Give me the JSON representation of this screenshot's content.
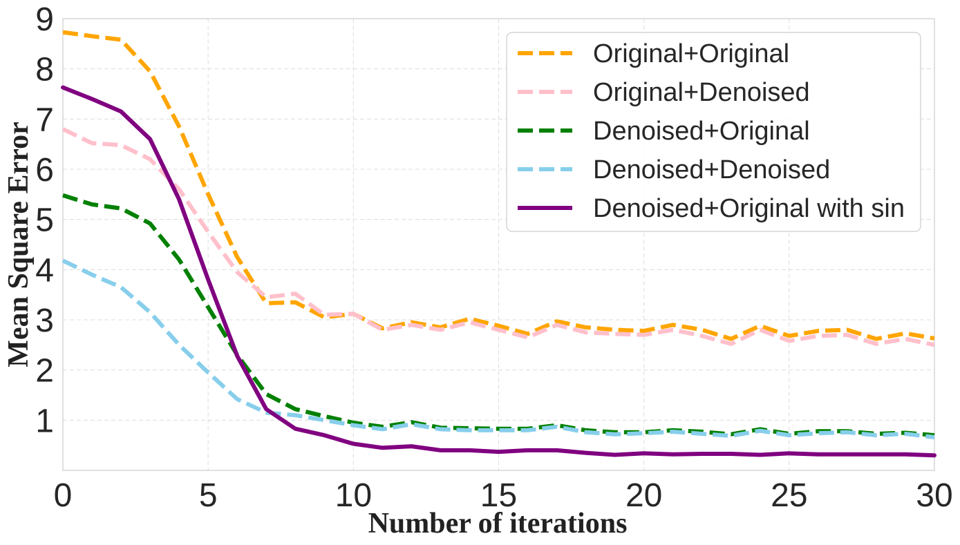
{
  "chart_data": {
    "type": "line",
    "title": "",
    "xlabel": "Number of iterations",
    "ylabel": "Mean Square Error",
    "xlim": [
      0,
      30
    ],
    "ylim": [
      0,
      9
    ],
    "xticks": [
      "0",
      "5",
      "10",
      "15",
      "20",
      "25",
      "30"
    ],
    "yticks": [
      "1",
      "2",
      "3",
      "4",
      "5",
      "6",
      "7",
      "8",
      "9"
    ],
    "grid": true,
    "legend_position": "top-right",
    "x": [
      0,
      1,
      2,
      3,
      4,
      5,
      6,
      7,
      8,
      9,
      10,
      11,
      12,
      13,
      14,
      15,
      16,
      17,
      18,
      19,
      20,
      21,
      22,
      23,
      24,
      25,
      26,
      27,
      28,
      29,
      30
    ],
    "series": [
      {
        "name": "Original+Original",
        "color": "#FFA500",
        "style": "dashed",
        "values": [
          8.73,
          8.65,
          8.58,
          7.95,
          6.85,
          5.5,
          4.25,
          3.33,
          3.35,
          3.05,
          3.12,
          2.83,
          2.95,
          2.85,
          3.02,
          2.88,
          2.72,
          2.97,
          2.85,
          2.8,
          2.78,
          2.9,
          2.8,
          2.62,
          2.88,
          2.68,
          2.78,
          2.8,
          2.62,
          2.73,
          2.63
        ]
      },
      {
        "name": "Original+Denoised",
        "color": "#FFC0CB",
        "style": "dashed",
        "values": [
          6.8,
          6.52,
          6.48,
          6.2,
          5.6,
          4.75,
          3.95,
          3.45,
          3.52,
          3.1,
          3.12,
          2.8,
          2.9,
          2.8,
          2.95,
          2.8,
          2.65,
          2.9,
          2.75,
          2.72,
          2.7,
          2.8,
          2.68,
          2.52,
          2.8,
          2.58,
          2.68,
          2.7,
          2.52,
          2.62,
          2.5
        ]
      },
      {
        "name": "Denoised+Original",
        "color": "#008000",
        "style": "dashed",
        "values": [
          5.48,
          5.3,
          5.22,
          4.92,
          4.2,
          3.25,
          2.3,
          1.52,
          1.22,
          1.08,
          0.95,
          0.87,
          0.96,
          0.85,
          0.84,
          0.83,
          0.83,
          0.9,
          0.8,
          0.76,
          0.76,
          0.8,
          0.77,
          0.72,
          0.82,
          0.73,
          0.78,
          0.78,
          0.73,
          0.75,
          0.7
        ]
      },
      {
        "name": "Denoised+Denoised",
        "color": "#87CEEB",
        "style": "dashed",
        "values": [
          4.18,
          3.9,
          3.65,
          3.15,
          2.5,
          1.95,
          1.42,
          1.15,
          1.1,
          1.0,
          0.9,
          0.82,
          0.92,
          0.82,
          0.8,
          0.8,
          0.8,
          0.87,
          0.76,
          0.72,
          0.74,
          0.77,
          0.73,
          0.69,
          0.79,
          0.7,
          0.74,
          0.76,
          0.7,
          0.73,
          0.66
        ]
      },
      {
        "name": "Denoised+Original with sin",
        "color": "#800080",
        "style": "solid",
        "values": [
          7.63,
          7.4,
          7.15,
          6.6,
          5.4,
          3.8,
          2.28,
          1.22,
          0.83,
          0.7,
          0.53,
          0.45,
          0.48,
          0.4,
          0.4,
          0.37,
          0.4,
          0.4,
          0.35,
          0.31,
          0.34,
          0.32,
          0.33,
          0.33,
          0.31,
          0.34,
          0.32,
          0.32,
          0.32,
          0.32,
          0.3
        ]
      }
    ]
  }
}
